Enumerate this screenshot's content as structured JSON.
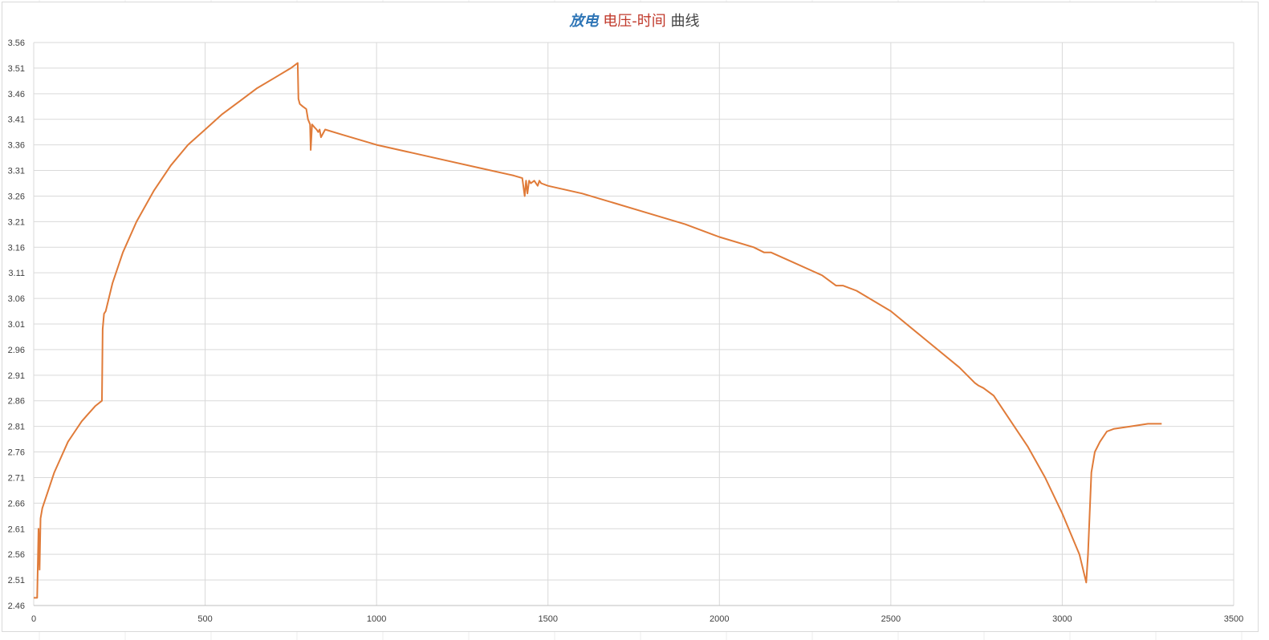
{
  "chart_data": {
    "type": "line",
    "title_parts": [
      "放电",
      "电压-时间",
      "曲线"
    ],
    "xlabel": "",
    "ylabel": "",
    "xlim": [
      0,
      3500
    ],
    "ylim": [
      2.46,
      3.56
    ],
    "x_ticks": [
      "0",
      "500",
      "1000",
      "1500",
      "2000",
      "2500",
      "3000",
      "3500"
    ],
    "y_ticks": [
      "2.46",
      "2.51",
      "2.56",
      "2.61",
      "2.66",
      "2.71",
      "2.76",
      "2.81",
      "2.86",
      "2.91",
      "2.96",
      "3.01",
      "3.06",
      "3.11",
      "3.16",
      "3.21",
      "3.26",
      "3.31",
      "3.36",
      "3.41",
      "3.46",
      "3.51",
      "3.56"
    ],
    "grid": true,
    "legend": "none",
    "colors": {
      "line": "#e07b39",
      "grid": "#d9d9d9",
      "title_blue": "#2e75b6",
      "title_red": "#c0392b",
      "title_gray": "#444444"
    },
    "series": [
      {
        "x": [
          0,
          10,
          14,
          17,
          20,
          25,
          40,
          60,
          80,
          100,
          120,
          140,
          160,
          180,
          199,
          201,
          205,
          210,
          230,
          260,
          300,
          350,
          400,
          450,
          500,
          550,
          600,
          650,
          700,
          750,
          770,
          772,
          776,
          785,
          795,
          800,
          803,
          806,
          808,
          812,
          818,
          825,
          830,
          834,
          838,
          850,
          900,
          1000,
          1100,
          1200,
          1300,
          1400,
          1425,
          1432,
          1436,
          1440,
          1445,
          1450,
          1460,
          1470,
          1475,
          1480,
          1500,
          1600,
          1700,
          1800,
          1900,
          2000,
          2100,
          2130,
          2150,
          2200,
          2300,
          2340,
          2360,
          2400,
          2500,
          2600,
          2700,
          2745,
          2755,
          2770,
          2800,
          2850,
          2900,
          2950,
          3000,
          3050,
          3070,
          3075,
          3080,
          3085,
          3095,
          3110,
          3130,
          3150,
          3200,
          3250,
          3290
        ],
        "y": [
          2.475,
          2.475,
          2.61,
          2.53,
          2.63,
          2.65,
          2.68,
          2.72,
          2.75,
          2.78,
          2.8,
          2.82,
          2.835,
          2.85,
          2.86,
          3.0,
          3.03,
          3.035,
          3.09,
          3.15,
          3.21,
          3.27,
          3.32,
          3.36,
          3.39,
          3.42,
          3.445,
          3.47,
          3.49,
          3.51,
          3.52,
          3.45,
          3.44,
          3.435,
          3.43,
          3.41,
          3.405,
          3.4,
          3.35,
          3.4,
          3.395,
          3.39,
          3.385,
          3.39,
          3.375,
          3.39,
          3.38,
          3.36,
          3.345,
          3.33,
          3.315,
          3.3,
          3.295,
          3.26,
          3.29,
          3.265,
          3.29,
          3.285,
          3.29,
          3.28,
          3.29,
          3.285,
          3.28,
          3.265,
          3.245,
          3.225,
          3.205,
          3.18,
          3.16,
          3.15,
          3.15,
          3.135,
          3.105,
          3.085,
          3.085,
          3.075,
          3.035,
          2.98,
          2.925,
          2.895,
          2.89,
          2.885,
          2.87,
          2.82,
          2.77,
          2.71,
          2.64,
          2.56,
          2.505,
          2.56,
          2.64,
          2.72,
          2.76,
          2.78,
          2.8,
          2.805,
          2.81,
          2.815,
          2.815
        ]
      }
    ]
  }
}
